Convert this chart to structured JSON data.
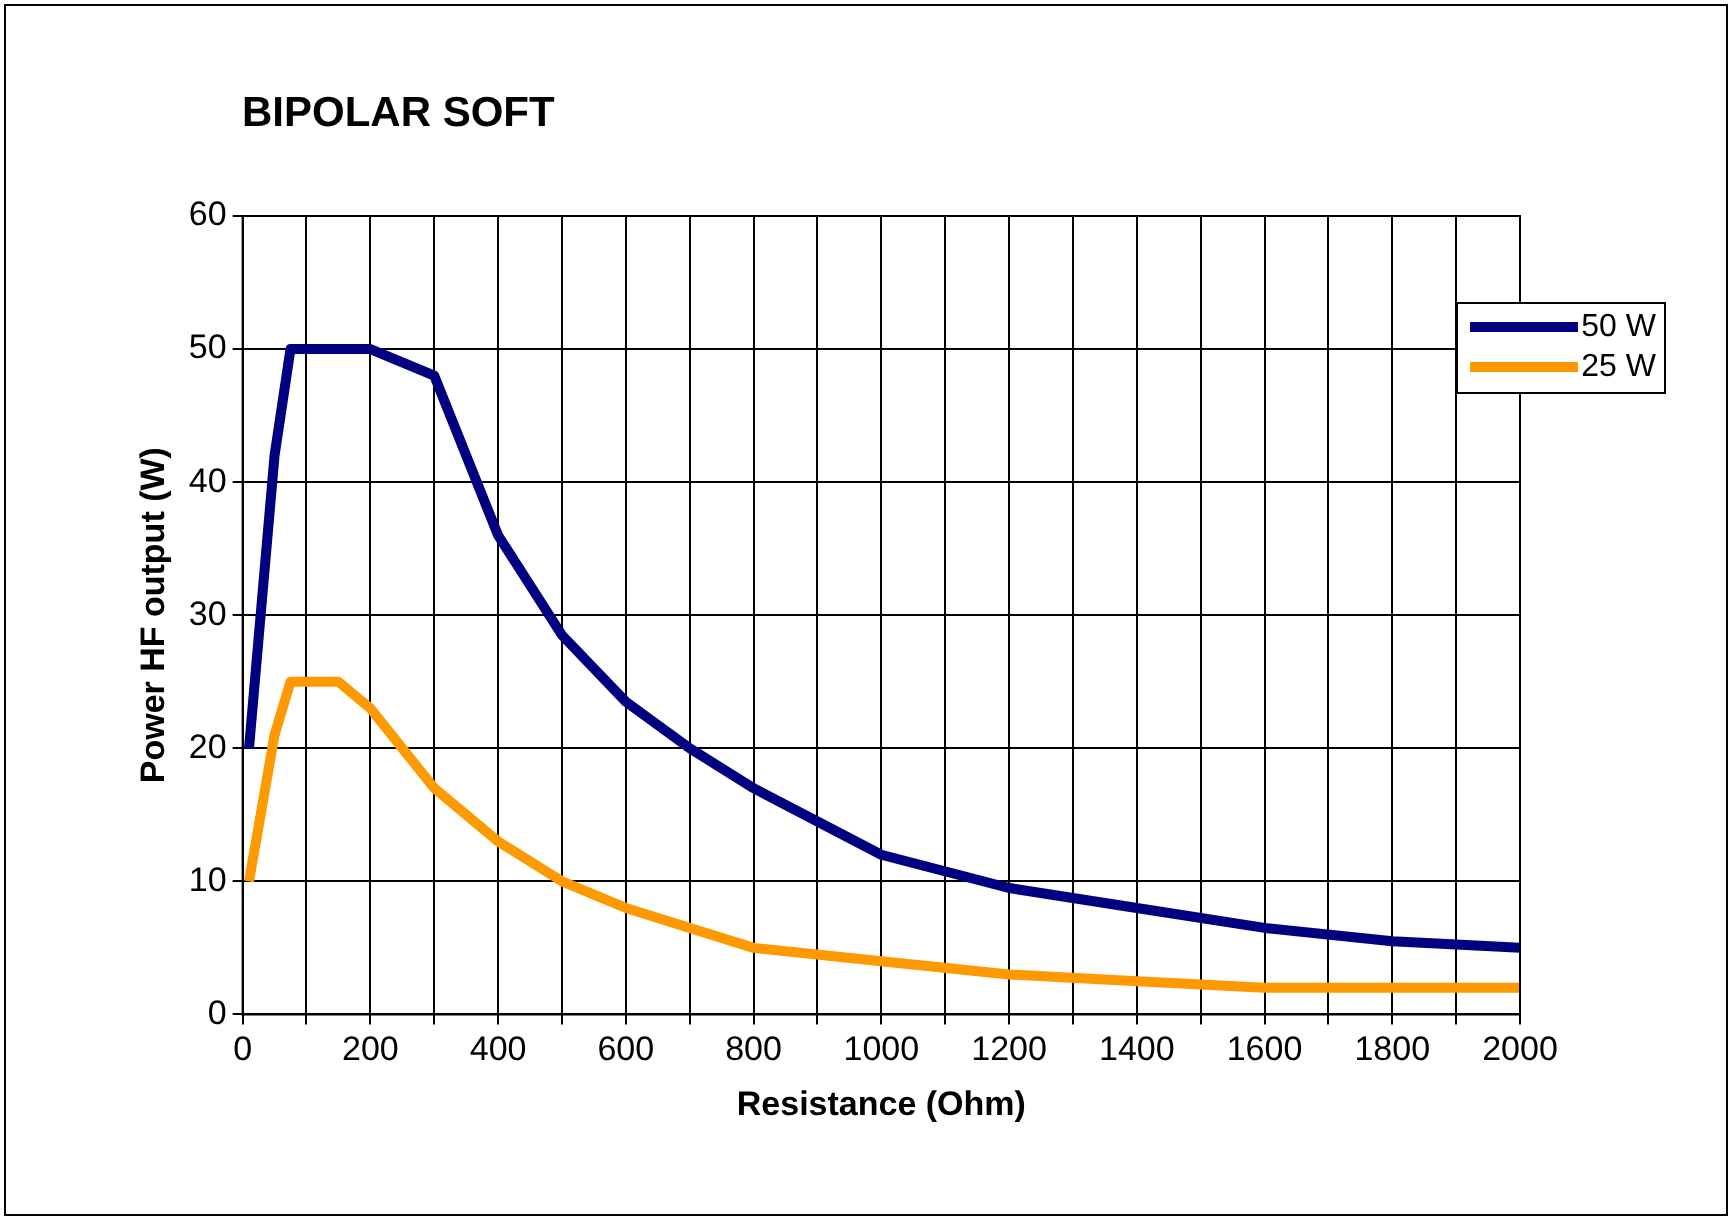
{
  "chart_data": {
    "type": "line",
    "title": "BIPOLAR SOFT",
    "xlabel": "Resistance (Ohm)",
    "ylabel": "Power HF output (W)",
    "xlim": [
      0,
      2000
    ],
    "xticks": [
      0,
      {
        "value": 100,
        "label": null
      },
      200,
      {
        "value": 300,
        "label": null
      },
      400,
      {
        "value": 500,
        "label": null
      },
      600,
      {
        "value": 700,
        "label": null
      },
      800,
      {
        "value": 900,
        "label": null
      },
      1000,
      {
        "value": 1100,
        "label": null
      },
      1200,
      {
        "value": 1300,
        "label": null
      },
      1400,
      {
        "value": 1500,
        "label": null
      },
      1600,
      {
        "value": 1700,
        "label": null
      },
      1800,
      {
        "value": 1900,
        "label": null
      },
      2000
    ],
    "ylim": [
      0,
      60
    ],
    "yticks": [
      0,
      10,
      20,
      30,
      40,
      50,
      60
    ],
    "grid": true,
    "legend": "top right",
    "marker": "none",
    "line_style": "solid",
    "series": [
      {
        "name": "50 W",
        "color": "#000080",
        "x": [
          10,
          50,
          75,
          100,
          200,
          300,
          400,
          500,
          600,
          700,
          800,
          900,
          1000,
          1200,
          1400,
          1600,
          1800,
          2000
        ],
        "values": [
          20,
          42,
          50,
          50,
          50,
          48,
          36,
          28.5,
          23.5,
          20,
          17,
          14.5,
          12,
          9.5,
          8,
          6.5,
          5.5,
          5
        ]
      },
      {
        "name": "25 W",
        "color": "#ff9900",
        "x": [
          10,
          50,
          75,
          100,
          150,
          200,
          300,
          400,
          500,
          600,
          800,
          1000,
          1200,
          1400,
          1600,
          1800,
          2000
        ],
        "values": [
          10,
          21,
          25,
          25,
          25,
          23,
          17,
          13,
          10,
          8,
          5,
          4,
          3,
          2.5,
          2,
          2,
          2
        ]
      }
    ]
  }
}
